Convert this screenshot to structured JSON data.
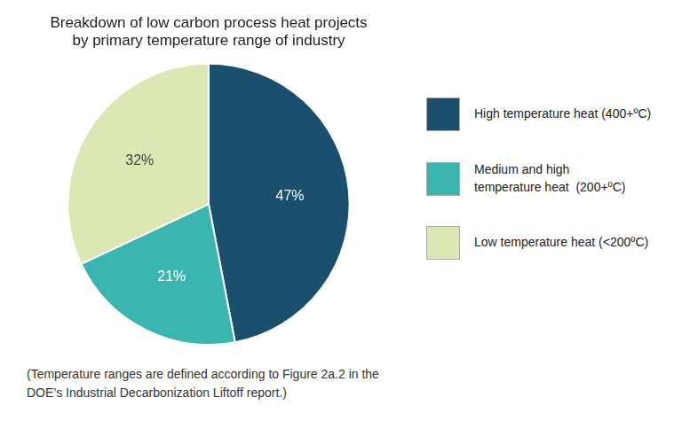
{
  "chart_data": {
    "type": "pie",
    "title": "Breakdown of low carbon process heat projects\nby primary temperature range of industry",
    "categories": [
      "High temperature heat (400+ºC)",
      "Medium and high\ntemperature heat  (200+ºC)",
      "Low temperature heat (<200ºC)"
    ],
    "values": [
      47,
      21,
      32
    ],
    "value_labels": [
      "47%",
      "21%",
      "32%"
    ],
    "data_labels": true,
    "colors": [
      "#1a4f6e",
      "#3ab5b0",
      "#dce8b4"
    ],
    "legend": "right",
    "annotations": [
      "(Temperature ranges are defined according to Figure 2a.2 in the\nDOE’s Industrial Decarbonization Liftoff report.)"
    ]
  }
}
